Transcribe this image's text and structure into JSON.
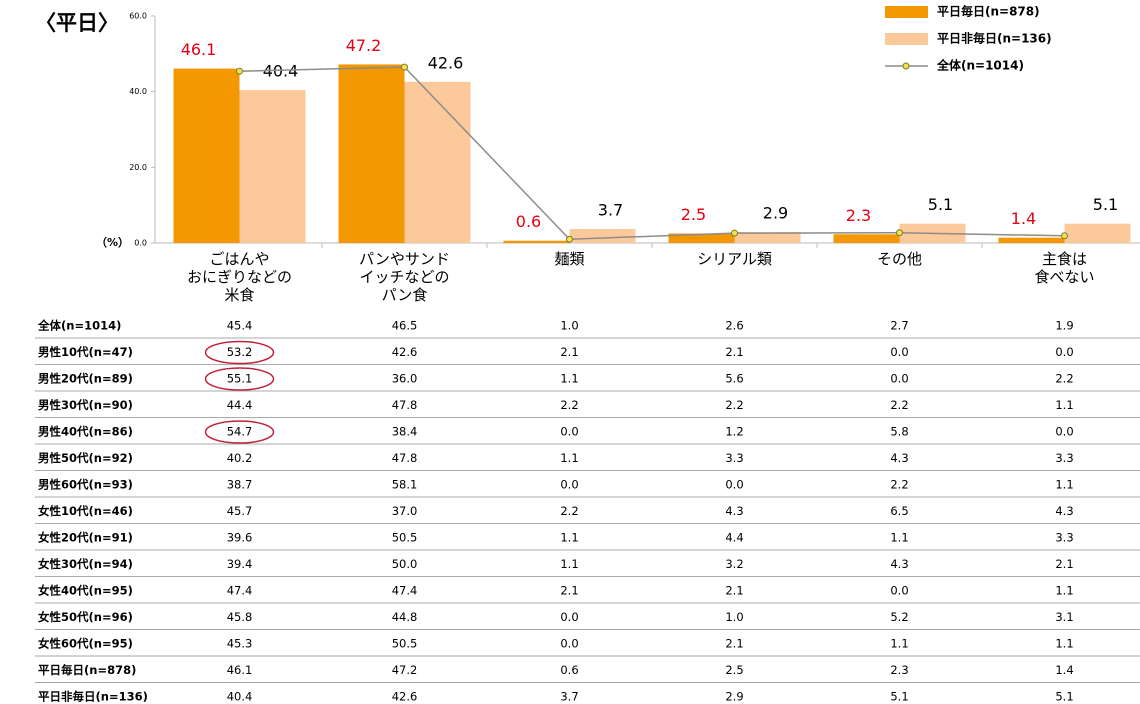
{
  "chart_data": {
    "type": "bar",
    "title": "〈平日〉",
    "y_axis_label": "（%）",
    "categories": [
      "ごはんや\nおにぎりなどの\n米食",
      "パンやサンド\nイッチなどの\nパン食",
      "麺類",
      "シリアル類",
      "その他",
      "主食は\n食べない"
    ],
    "series": [
      {
        "name": "平日毎日(n=878)",
        "color": "#f39800",
        "label_color": "#e60012",
        "values": [
          46.1,
          47.2,
          0.6,
          2.5,
          2.3,
          1.4
        ]
      },
      {
        "name": "平日非毎日(n=136)",
        "color": "#fcc99a",
        "label_color": "#000000",
        "values": [
          40.4,
          42.6,
          3.7,
          2.9,
          5.1,
          5.1
        ]
      },
      {
        "name": "全体(n=1014)",
        "type": "line",
        "color": "#8c8c8c",
        "marker_color": "#f5e04a",
        "values": [
          45.4,
          46.5,
          1.0,
          2.6,
          2.7,
          1.9
        ]
      }
    ],
    "ylim": [
      0,
      60
    ],
    "yticks": [
      {
        "value": 0,
        "label": "0.0"
      },
      {
        "value": 20,
        "label": "20.0"
      },
      {
        "value": 40,
        "label": "40.0"
      },
      {
        "value": 60,
        "label": "60.0"
      }
    ],
    "legend": "top-right"
  },
  "table": {
    "rows": [
      {
        "label": "全体(n=1014)",
        "values": [
          "45.4",
          "46.5",
          "1.0",
          "2.6",
          "2.7",
          "1.9"
        ]
      },
      {
        "label": "男性10代(n=47)",
        "values": [
          "53.2",
          "42.6",
          "2.1",
          "2.1",
          "0.0",
          "0.0"
        ]
      },
      {
        "label": "男性20代(n=89)",
        "values": [
          "55.1",
          "36.0",
          "1.1",
          "5.6",
          "0.0",
          "2.2"
        ]
      },
      {
        "label": "男性30代(n=90)",
        "values": [
          "44.4",
          "47.8",
          "2.2",
          "2.2",
          "2.2",
          "1.1"
        ]
      },
      {
        "label": "男性40代(n=86)",
        "values": [
          "54.7",
          "38.4",
          "0.0",
          "1.2",
          "5.8",
          "0.0"
        ]
      },
      {
        "label": "男性50代(n=92)",
        "values": [
          "40.2",
          "47.8",
          "1.1",
          "3.3",
          "4.3",
          "3.3"
        ]
      },
      {
        "label": "男性60代(n=93)",
        "values": [
          "38.7",
          "58.1",
          "0.0",
          "0.0",
          "2.2",
          "1.1"
        ]
      },
      {
        "label": "女性10代(n=46)",
        "values": [
          "45.7",
          "37.0",
          "2.2",
          "4.3",
          "6.5",
          "4.3"
        ]
      },
      {
        "label": "女性20代(n=91)",
        "values": [
          "39.6",
          "50.5",
          "1.1",
          "4.4",
          "1.1",
          "3.3"
        ]
      },
      {
        "label": "女性30代(n=94)",
        "values": [
          "39.4",
          "50.0",
          "1.1",
          "3.2",
          "4.3",
          "2.1"
        ]
      },
      {
        "label": "女性40代(n=95)",
        "values": [
          "47.4",
          "47.4",
          "2.1",
          "2.1",
          "0.0",
          "1.1"
        ]
      },
      {
        "label": "女性50代(n=96)",
        "values": [
          "45.8",
          "44.8",
          "0.0",
          "1.0",
          "5.2",
          "3.1"
        ]
      },
      {
        "label": "女性60代(n=95)",
        "values": [
          "45.3",
          "50.5",
          "0.0",
          "2.1",
          "1.1",
          "1.1"
        ]
      },
      {
        "label": "平日毎日(n=878)",
        "values": [
          "46.1",
          "47.2",
          "0.6",
          "2.5",
          "2.3",
          "1.4"
        ]
      },
      {
        "label": "平日非毎日(n=136)",
        "values": [
          "40.4",
          "42.6",
          "3.7",
          "2.9",
          "5.1",
          "5.1"
        ]
      }
    ],
    "circled_cells": [
      [
        1,
        0
      ],
      [
        2,
        0
      ],
      [
        4,
        0
      ]
    ]
  }
}
